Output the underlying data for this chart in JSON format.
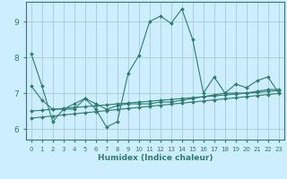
{
  "xlabel": "Humidex (Indice chaleur)",
  "ylabel": "",
  "background_color": "#cceeff",
  "grid_color": "#aacccc",
  "line_color": "#2e7d6e",
  "xlim": [
    -0.5,
    23.5
  ],
  "ylim": [
    5.7,
    9.55
  ],
  "yticks": [
    6,
    7,
    8,
    9
  ],
  "xticks": [
    0,
    1,
    2,
    3,
    4,
    5,
    6,
    7,
    8,
    9,
    10,
    11,
    12,
    13,
    14,
    15,
    16,
    17,
    18,
    19,
    20,
    21,
    22,
    23
  ],
  "series": [
    [
      8.1,
      7.2,
      6.2,
      6.55,
      6.55,
      6.85,
      6.55,
      6.05,
      6.2,
      7.55,
      8.05,
      9.0,
      9.15,
      8.95,
      9.35,
      8.5,
      7.0,
      7.45,
      7.0,
      7.25,
      7.15,
      7.35,
      7.45,
      7.0
    ],
    [
      7.2,
      6.8,
      6.55,
      6.55,
      6.7,
      6.85,
      6.7,
      6.55,
      6.65,
      6.7,
      6.7,
      6.7,
      6.75,
      6.75,
      6.8,
      6.85,
      6.9,
      6.95,
      7.0,
      7.0,
      7.0,
      7.05,
      7.1,
      7.1
    ],
    [
      6.5,
      6.52,
      6.55,
      6.57,
      6.6,
      6.62,
      6.65,
      6.67,
      6.7,
      6.72,
      6.75,
      6.77,
      6.8,
      6.82,
      6.85,
      6.87,
      6.9,
      6.92,
      6.95,
      6.97,
      7.0,
      7.02,
      7.05,
      7.07
    ],
    [
      6.3,
      6.33,
      6.36,
      6.39,
      6.42,
      6.45,
      6.48,
      6.51,
      6.54,
      6.57,
      6.6,
      6.63,
      6.66,
      6.69,
      6.72,
      6.75,
      6.78,
      6.81,
      6.84,
      6.87,
      6.9,
      6.93,
      6.96,
      6.99
    ]
  ]
}
